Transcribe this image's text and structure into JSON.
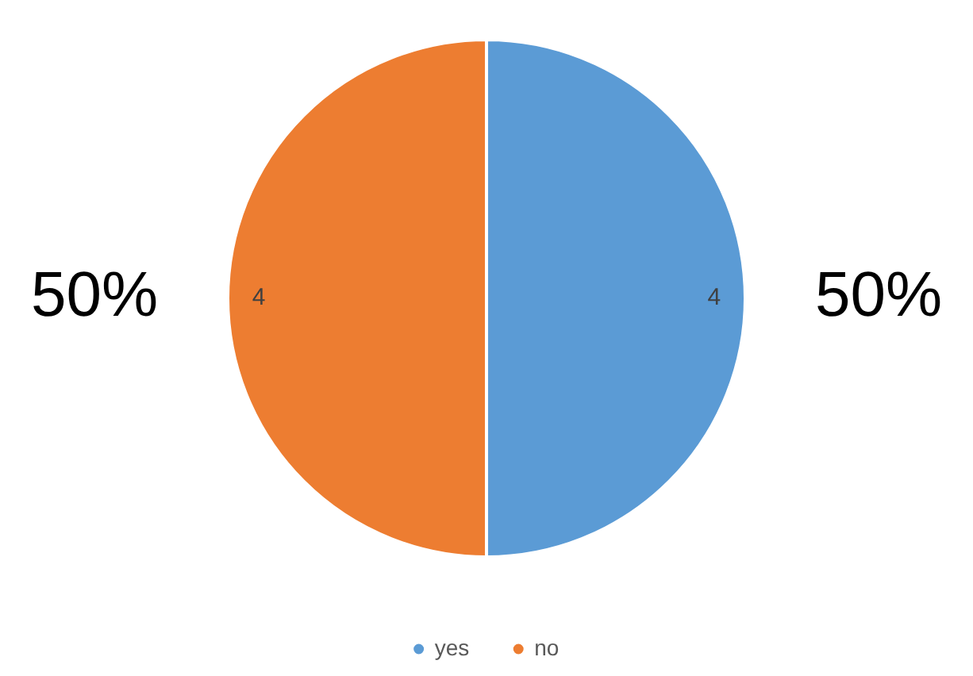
{
  "chart_data": {
    "type": "pie",
    "categories": [
      "yes",
      "no"
    ],
    "values": [
      4,
      4
    ],
    "colors": [
      "#5b9bd5",
      "#ed7d31"
    ],
    "data_labels": true,
    "legend": "bottom",
    "annotations": [
      {
        "text": "50%",
        "x": "yes"
      },
      {
        "text": "50%",
        "x": "no"
      }
    ]
  }
}
